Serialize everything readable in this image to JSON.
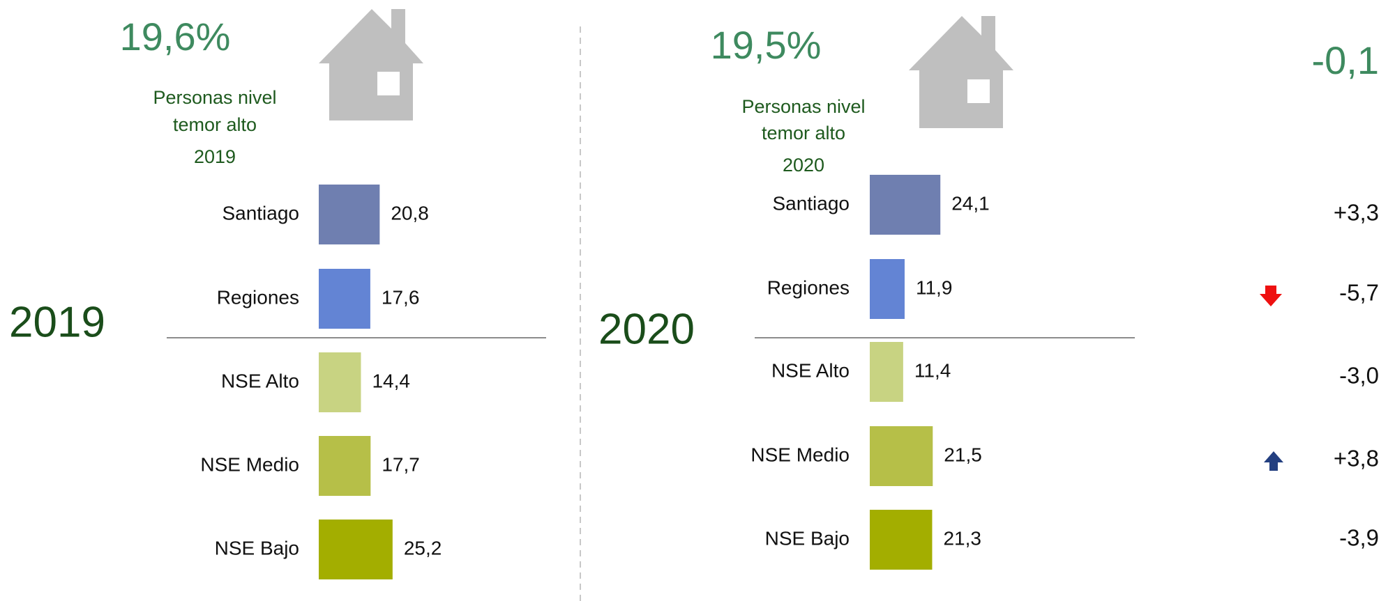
{
  "chart_data": [
    {
      "type": "bar",
      "year": "2019",
      "headline": "19,6%",
      "subtitle": [
        "Personas nivel",
        "temor alto",
        "2019"
      ],
      "categories": [
        "Santiago",
        "Regiones",
        "NSE Alto",
        "NSE Medio",
        "NSE Bajo"
      ],
      "values": [
        20.8,
        17.6,
        14.4,
        17.7,
        25.2
      ],
      "value_labels": [
        "20,8",
        "17,6",
        "14,4",
        "17,7",
        "25,2"
      ],
      "colors": [
        "#6f7fb0",
        "#6384d4",
        "#c8d382",
        "#b6bf48",
        "#a3ae00"
      ]
    },
    {
      "type": "bar",
      "year": "2020",
      "headline": "19,5%",
      "subtitle": [
        "Personas nivel",
        "temor alto",
        "2020"
      ],
      "categories": [
        "Santiago",
        "Regiones",
        "NSE Alto",
        "NSE Medio",
        "NSE Bajo"
      ],
      "values": [
        24.1,
        11.9,
        11.4,
        21.5,
        21.3
      ],
      "value_labels": [
        "24,1",
        "11,9",
        "11,4",
        "21,5",
        "21,3"
      ],
      "colors": [
        "#6f7fb0",
        "#6384d4",
        "#c8d382",
        "#b6bf48",
        "#a3ae00"
      ]
    }
  ],
  "changes": {
    "total": "-0,1",
    "rows": [
      "+3,3",
      "-5,7",
      "-3,0",
      "+3,8",
      "-3,9"
    ]
  }
}
